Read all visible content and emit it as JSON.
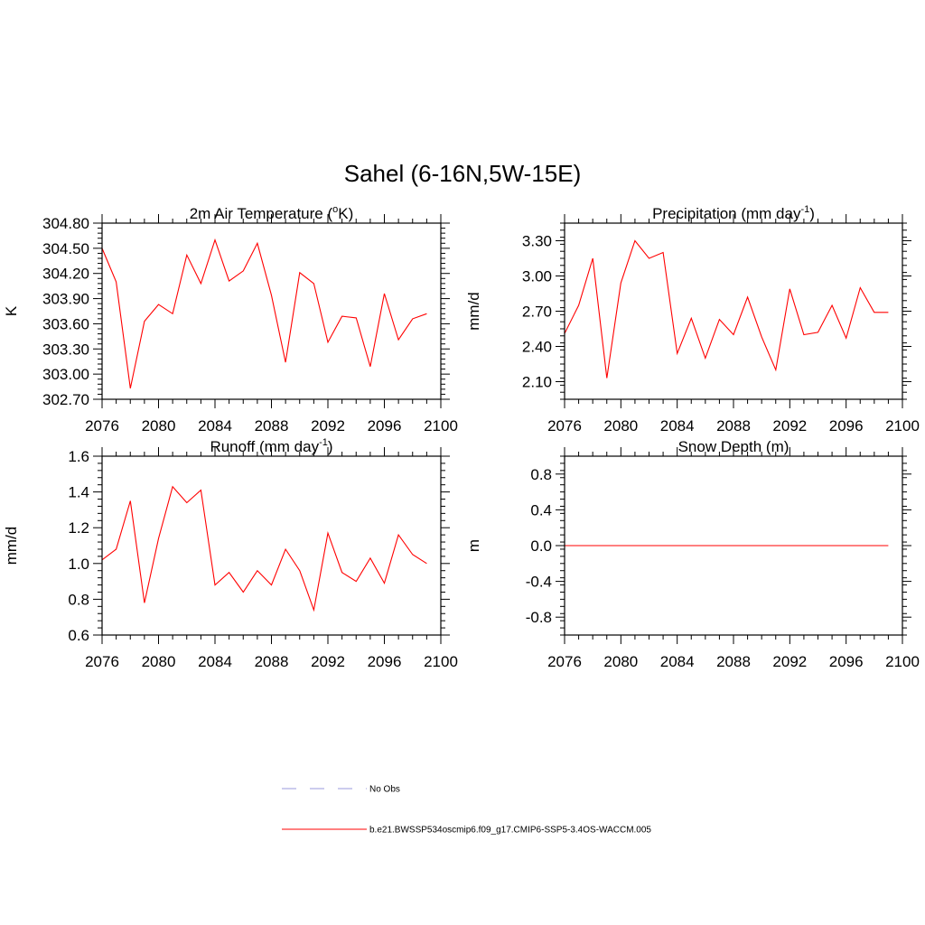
{
  "figure": {
    "title": "Sahel (6-16N,5W-15E)"
  },
  "legend": {
    "items": [
      {
        "label": "No Obs",
        "color": "#9999dd",
        "style": "dashed"
      },
      {
        "label": "b.e21.BWSSP534oscmip6.f09_g17.CMIP6-SSP5-3.4OS-WACCM.005",
        "color": "#ff0000",
        "style": "solid"
      }
    ]
  },
  "chart_data": [
    {
      "type": "line",
      "title": "2m Air Temperature (oK)",
      "title_parts": [
        "2m Air Temperature (",
        "o",
        "K)"
      ],
      "ylabel": "K",
      "xlim": [
        2076,
        2100
      ],
      "ylim": [
        302.7,
        304.8
      ],
      "xticks": [
        2076,
        2080,
        2084,
        2088,
        2092,
        2096,
        2100
      ],
      "yticks": [
        "302.70",
        "303.00",
        "303.30",
        "303.60",
        "303.90",
        "304.20",
        "304.50",
        "304.80"
      ],
      "series": [
        {
          "color": "#ff0000",
          "x": [
            2076,
            2077,
            2078,
            2079,
            2080,
            2081,
            2082,
            2083,
            2084,
            2085,
            2086,
            2087,
            2088,
            2089,
            2090,
            2091,
            2092,
            2093,
            2094,
            2095,
            2096,
            2097,
            2098,
            2099
          ],
          "values": [
            304.5,
            304.1,
            302.83,
            303.63,
            303.83,
            303.72,
            304.42,
            304.08,
            304.6,
            304.11,
            304.23,
            304.56,
            303.94,
            303.14,
            304.21,
            304.08,
            303.38,
            303.69,
            303.67,
            303.09,
            303.96,
            303.41,
            303.66,
            303.72
          ]
        }
      ]
    },
    {
      "type": "line",
      "title": "Precipitation (mm day-1)",
      "title_parts": [
        "Precipitation (mm day",
        "-1",
        ")"
      ],
      "ylabel": "mm/d",
      "xlim": [
        2076,
        2100
      ],
      "ylim": [
        1.95,
        3.45
      ],
      "xticks": [
        2076,
        2080,
        2084,
        2088,
        2092,
        2096,
        2100
      ],
      "yticks": [
        "2.10",
        "2.40",
        "2.70",
        "3.00",
        "3.30"
      ],
      "series": [
        {
          "color": "#ff0000",
          "x": [
            2076,
            2077,
            2078,
            2079,
            2080,
            2081,
            2082,
            2083,
            2084,
            2085,
            2086,
            2087,
            2088,
            2089,
            2090,
            2091,
            2092,
            2093,
            2094,
            2095,
            2096,
            2097,
            2098,
            2099
          ],
          "values": [
            2.51,
            2.75,
            3.15,
            2.13,
            2.94,
            3.3,
            3.15,
            3.2,
            2.34,
            2.64,
            2.3,
            2.63,
            2.5,
            2.82,
            2.48,
            2.2,
            2.89,
            2.5,
            2.52,
            2.75,
            2.47,
            2.9,
            2.69,
            2.69
          ]
        }
      ]
    },
    {
      "type": "line",
      "title": "Runoff (mm day-1)",
      "title_parts": [
        "Runoff (mm day",
        "-1",
        ")"
      ],
      "ylabel": "mm/d",
      "xlim": [
        2076,
        2100
      ],
      "ylim": [
        0.6,
        1.6
      ],
      "xticks": [
        2076,
        2080,
        2084,
        2088,
        2092,
        2096,
        2100
      ],
      "yticks": [
        "0.6",
        "0.8",
        "1.0",
        "1.2",
        "1.4",
        "1.6"
      ],
      "series": [
        {
          "color": "#ff0000",
          "x": [
            2076,
            2077,
            2078,
            2079,
            2080,
            2081,
            2082,
            2083,
            2084,
            2085,
            2086,
            2087,
            2088,
            2089,
            2090,
            2091,
            2092,
            2093,
            2094,
            2095,
            2096,
            2097,
            2098,
            2099
          ],
          "values": [
            1.02,
            1.08,
            1.35,
            0.78,
            1.14,
            1.43,
            1.34,
            1.41,
            0.88,
            0.95,
            0.84,
            0.96,
            0.88,
            1.08,
            0.96,
            0.74,
            1.17,
            0.95,
            0.9,
            1.03,
            0.89,
            1.16,
            1.05,
            1.0
          ]
        }
      ]
    },
    {
      "type": "line",
      "title": "Snow Depth (m)",
      "title_parts": [
        "Snow Depth (m)"
      ],
      "ylabel": "m",
      "xlim": [
        2076,
        2100
      ],
      "ylim": [
        -1.0,
        1.0
      ],
      "xticks": [
        2076,
        2080,
        2084,
        2088,
        2092,
        2096,
        2100
      ],
      "yticks": [
        "-0.8",
        "-0.4",
        "0.0",
        "0.4",
        "0.8"
      ],
      "series": [
        {
          "color": "#ff0000",
          "x": [
            2076,
            2077,
            2078,
            2079,
            2080,
            2081,
            2082,
            2083,
            2084,
            2085,
            2086,
            2087,
            2088,
            2089,
            2090,
            2091,
            2092,
            2093,
            2094,
            2095,
            2096,
            2097,
            2098,
            2099
          ],
          "values": [
            0,
            0,
            0,
            0,
            0,
            0,
            0,
            0,
            0,
            0,
            0,
            0,
            0,
            0,
            0,
            0,
            0,
            0,
            0,
            0,
            0,
            0,
            0,
            0
          ]
        }
      ]
    }
  ]
}
